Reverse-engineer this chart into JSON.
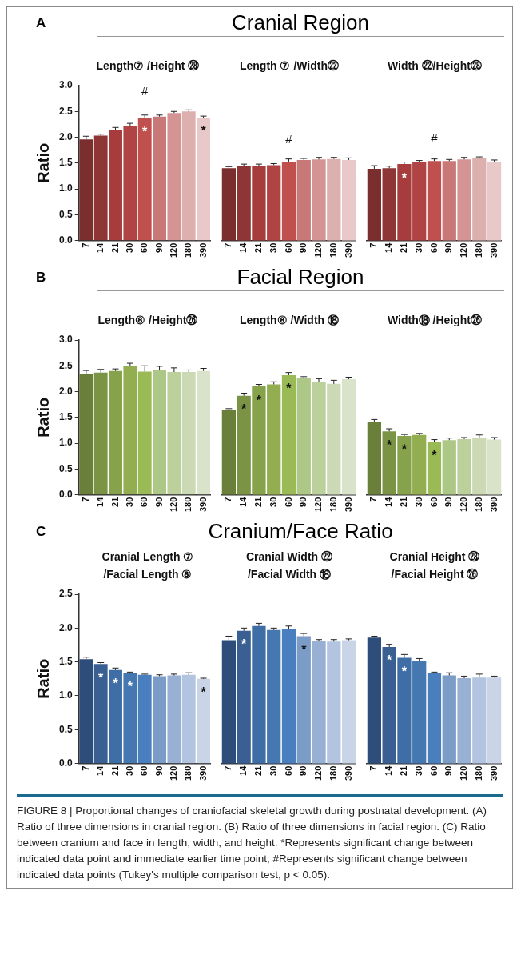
{
  "chart_data": [
    {
      "type": "bar",
      "subtitle": "Length⑦ /Height ㉘",
      "ylabel": "Ratio",
      "annotations": [
        "A",
        {
          "text": "*",
          "x": "60",
          "y": 2.37
        },
        {
          "text": "*",
          "x": "390",
          "y": 2.38
        },
        "#"
      ],
      "categories": [
        "7",
        "14",
        "21",
        "30",
        "60",
        "90",
        "120",
        "180",
        "390"
      ],
      "values": [
        1.96,
        2.03,
        2.14,
        2.22,
        2.37,
        2.4,
        2.47,
        2.5,
        2.38
      ],
      "errors": [
        0.06,
        0.03,
        0.05,
        0.05,
        0.06,
        0.03,
        0.03,
        0.03,
        0.03
      ],
      "colors": [
        "#7a2e2e",
        "#8e3535",
        "#a63c3c",
        "#b04444",
        "#c0504d",
        "#c97878",
        "#d49494",
        "#ddb0b0",
        "#e8c8c8"
      ],
      "ylim": [
        0,
        3
      ],
      "yticks": [
        {
          "value": 0,
          "label": "0.0"
        },
        {
          "value": 0.5,
          "label": "0.5"
        },
        {
          "value": 1,
          "label": "1.0"
        },
        {
          "value": 1.5,
          "label": "1.5"
        },
        {
          "value": 2,
          "label": "2.0"
        },
        {
          "value": 2.5,
          "label": "2.5"
        },
        {
          "value": 3,
          "label": "3.0"
        }
      ],
      "grid": false
    },
    {
      "type": "bar",
      "title": "Cranial Region",
      "subtitle": "Length ⑦ /Width㉒",
      "annotations": [
        "#"
      ],
      "categories": [
        "7",
        "14",
        "21",
        "30",
        "60",
        "90",
        "120",
        "180",
        "390"
      ],
      "values": [
        1.4,
        1.45,
        1.44,
        1.46,
        1.53,
        1.56,
        1.57,
        1.58,
        1.56
      ],
      "errors": [
        0.03,
        0.03,
        0.04,
        0.03,
        0.05,
        0.03,
        0.04,
        0.03,
        0.04
      ],
      "colors": [
        "#7a2e2e",
        "#8e3535",
        "#a63c3c",
        "#b04444",
        "#c0504d",
        "#c97878",
        "#d49494",
        "#ddb0b0",
        "#e8c8c8"
      ],
      "ylim": [
        0,
        3
      ],
      "tick_labels": "x",
      "grid": false
    },
    {
      "type": "bar",
      "subtitle": "Width ㉒/Height㉘",
      "annotations": [
        {
          "text": "*",
          "x": "21",
          "y": 1.48
        },
        "#"
      ],
      "categories": [
        "7",
        "14",
        "21",
        "30",
        "60",
        "90",
        "120",
        "180",
        "390"
      ],
      "values": [
        1.39,
        1.4,
        1.48,
        1.52,
        1.54,
        1.54,
        1.57,
        1.59,
        1.53
      ],
      "errors": [
        0.06,
        0.04,
        0.04,
        0.03,
        0.04,
        0.03,
        0.04,
        0.03,
        0.03
      ],
      "colors": [
        "#7a2e2e",
        "#8e3535",
        "#a63c3c",
        "#b04444",
        "#c0504d",
        "#c97878",
        "#d49494",
        "#ddb0b0",
        "#e8c8c8"
      ],
      "ylim": [
        0,
        3
      ],
      "tick_labels": "x",
      "grid": false
    },
    {
      "type": "bar",
      "subtitle": "Length⑧ /Height㉖",
      "ylabel": "Ratio",
      "annotations": [
        "B"
      ],
      "categories": [
        "7",
        "14",
        "21",
        "30",
        "60",
        "90",
        "120",
        "180",
        "390"
      ],
      "values": [
        2.35,
        2.37,
        2.4,
        2.5,
        2.39,
        2.41,
        2.38,
        2.38,
        2.4
      ],
      "errors": [
        0.06,
        0.06,
        0.04,
        0.05,
        0.11,
        0.08,
        0.08,
        0.04,
        0.05
      ],
      "colors": [
        "#6a7f3a",
        "#7a9344",
        "#86a24a",
        "#92ae50",
        "#9aba55",
        "#adc787",
        "#bcd09c",
        "#cbd9b4",
        "#d9e3c9"
      ],
      "ylim": [
        0,
        3
      ],
      "yticks": [
        {
          "value": 0,
          "label": "0.0"
        },
        {
          "value": 0.5,
          "label": "0.5"
        },
        {
          "value": 1,
          "label": "1.0"
        },
        {
          "value": 1.5,
          "label": "1.5"
        },
        {
          "value": 2,
          "label": "2.0"
        },
        {
          "value": 2.5,
          "label": "2.5"
        },
        {
          "value": 3,
          "label": "3.0"
        }
      ],
      "grid": false
    },
    {
      "type": "bar",
      "title": "Facial Region",
      "subtitle": "Length⑧ /Width ⑱",
      "annotations": [
        {
          "text": "*",
          "x": "14",
          "y": 1.92
        },
        {
          "text": "*",
          "x": "21",
          "y": 2.1
        },
        {
          "text": "*",
          "x": "60",
          "y": 2.32
        }
      ],
      "categories": [
        "7",
        "14",
        "21",
        "30",
        "60",
        "90",
        "120",
        "180",
        "390"
      ],
      "values": [
        1.64,
        1.92,
        2.1,
        2.14,
        2.32,
        2.26,
        2.19,
        2.15,
        2.24
      ],
      "errors": [
        0.03,
        0.05,
        0.04,
        0.05,
        0.05,
        0.03,
        0.06,
        0.07,
        0.04
      ],
      "colors": [
        "#6a7f3a",
        "#7a9344",
        "#86a24a",
        "#92ae50",
        "#9aba55",
        "#adc787",
        "#bcd09c",
        "#cbd9b4",
        "#d9e3c9"
      ],
      "ylim": [
        0,
        3
      ],
      "tick_labels": "x",
      "grid": false
    },
    {
      "type": "bar",
      "subtitle": "Width⑱ /Height㉖",
      "annotations": [
        {
          "text": "*",
          "x": "14",
          "y": 1.23
        },
        {
          "text": "*",
          "x": "21",
          "y": 1.14
        },
        {
          "text": "*",
          "x": "60",
          "y": 1.03
        }
      ],
      "categories": [
        "7",
        "14",
        "21",
        "30",
        "60",
        "90",
        "120",
        "180",
        "390"
      ],
      "values": [
        1.42,
        1.23,
        1.14,
        1.16,
        1.03,
        1.06,
        1.08,
        1.11,
        1.07
      ],
      "errors": [
        0.04,
        0.05,
        0.03,
        0.03,
        0.04,
        0.04,
        0.03,
        0.05,
        0.04
      ],
      "colors": [
        "#6a7f3a",
        "#7a9344",
        "#86a24a",
        "#92ae50",
        "#9aba55",
        "#adc787",
        "#bcd09c",
        "#cbd9b4",
        "#d9e3c9"
      ],
      "ylim": [
        0,
        3
      ],
      "tick_labels": "x",
      "grid": false
    },
    {
      "type": "bar",
      "subtitle": "Cranial Length ⑦\n/Facial Length ⑧",
      "ylabel": "Ratio",
      "annotations": [
        "C",
        {
          "text": "*",
          "x": "14",
          "y": 1.47
        },
        {
          "text": "*",
          "x": "21",
          "y": 1.38
        },
        {
          "text": "*",
          "x": "30",
          "y": 1.33
        },
        {
          "text": "*",
          "x": "390",
          "y": 1.25
        }
      ],
      "categories": [
        "7",
        "14",
        "21",
        "30",
        "60",
        "90",
        "120",
        "180",
        "390"
      ],
      "values": [
        1.54,
        1.47,
        1.38,
        1.33,
        1.31,
        1.29,
        1.3,
        1.31,
        1.25
      ],
      "errors": [
        0.03,
        0.02,
        0.03,
        0.02,
        0.01,
        0.02,
        0.02,
        0.03,
        0.01
      ],
      "colors": [
        "#2f4d7a",
        "#3a6093",
        "#3f6ea6",
        "#4577b0",
        "#4a7fbf",
        "#7b9cc7",
        "#97b0d3",
        "#b2c4df",
        "#c9d4e6"
      ],
      "ylim": [
        0,
        2.5
      ],
      "yticks": [
        {
          "value": 0,
          "label": "0.0"
        },
        {
          "value": 0.5,
          "label": "0.5"
        },
        {
          "value": 1,
          "label": "1.0"
        },
        {
          "value": 1.5,
          "label": "1.5"
        },
        {
          "value": 2,
          "label": "2.0"
        },
        {
          "value": 2.5,
          "label": "2.5"
        }
      ],
      "grid": false
    },
    {
      "type": "bar",
      "title": "Cranium/Face Ratio",
      "subtitle": "Cranial Width ㉒\n/Facial Width ⑱",
      "annotations": [
        {
          "text": "*",
          "x": "14",
          "y": 1.96
        },
        {
          "text": "*",
          "x": "90",
          "y": 1.88
        }
      ],
      "categories": [
        "7",
        "14",
        "21",
        "30",
        "60",
        "90",
        "120",
        "180",
        "390"
      ],
      "values": [
        1.82,
        1.96,
        2.03,
        1.97,
        1.99,
        1.88,
        1.81,
        1.8,
        1.82
      ],
      "errors": [
        0.06,
        0.04,
        0.04,
        0.03,
        0.04,
        0.04,
        0.02,
        0.03,
        0.02
      ],
      "colors": [
        "#2f4d7a",
        "#3a6093",
        "#3f6ea6",
        "#4577b0",
        "#4a7fbf",
        "#7b9cc7",
        "#97b0d3",
        "#b2c4df",
        "#c9d4e6"
      ],
      "ylim": [
        0,
        2.5
      ],
      "tick_labels": "x",
      "grid": false
    },
    {
      "type": "bar",
      "subtitle": "Cranial Height ㉘\n/Facial Height ㉖",
      "annotations": [
        {
          "text": "*",
          "x": "14",
          "y": 1.72
        },
        {
          "text": "*",
          "x": "21",
          "y": 1.56
        },
        "FIGURE 8 | Proportional changes of craniofacial skeletal growth during postnatal development. (A) Ratio of three dimensions in cranial region. (B) Ratio of three dimensions in facial region. (C) Ratio between cranium and face in length, width, and height. *Represents significant change between indicated data point and immediate earlier time point; #Represents significant change between indicated data points (Tukey's multiple comparison test, p < 0.05)."
      ],
      "categories": [
        "7",
        "14",
        "21",
        "30",
        "60",
        "90",
        "120",
        "180",
        "390"
      ],
      "values": [
        1.86,
        1.72,
        1.56,
        1.51,
        1.33,
        1.3,
        1.26,
        1.27,
        1.27
      ],
      "errors": [
        0.02,
        0.04,
        0.05,
        0.04,
        0.02,
        0.04,
        0.03,
        0.05,
        0.02
      ],
      "colors": [
        "#2f4d7a",
        "#3a6093",
        "#3f6ea6",
        "#4577b0",
        "#4a7fbf",
        "#7b9cc7",
        "#97b0d3",
        "#b2c4df",
        "#c9d4e6"
      ],
      "ylim": [
        0,
        2.5
      ],
      "tick_labels": "x",
      "grid": false
    }
  ]
}
